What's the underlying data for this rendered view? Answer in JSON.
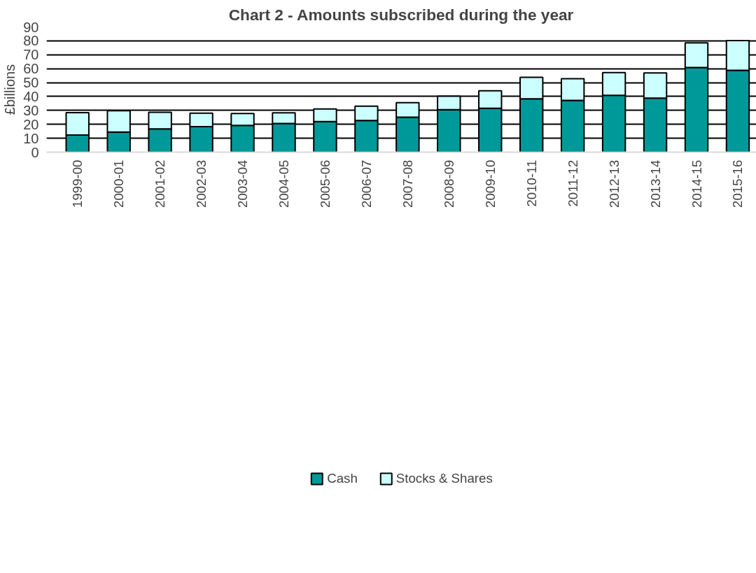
{
  "chart_data": {
    "type": "bar",
    "title": "Chart 2 - Amounts subscribed during the year",
    "ylabel": "£billions",
    "categories": [
      "1999-00",
      "2000-01",
      "2001-02",
      "2002-03",
      "2003-04",
      "2004-05",
      "2005-06",
      "2006-07",
      "2007-08",
      "2008-09",
      "2009-10",
      "2010-11",
      "2011-12",
      "2012-13",
      "2013-14",
      "2014-15",
      "2015-16"
    ],
    "series": [
      {
        "name": "Cash",
        "color": "#009999",
        "values": [
          12.3,
          14.5,
          16.7,
          18.4,
          19.2,
          20.6,
          22.0,
          22.8,
          25.2,
          30.5,
          31.6,
          38.3,
          37.2,
          40.9,
          38.9,
          60.8,
          58.8
        ]
      },
      {
        "name": "Stocks & Shares",
        "color": "#ccffff",
        "values": [
          16.1,
          15.3,
          12.0,
          9.6,
          8.6,
          7.7,
          9.1,
          10.2,
          10.4,
          9.7,
          12.5,
          15.5,
          15.6,
          16.3,
          18.1,
          17.8,
          21.4
        ]
      }
    ],
    "stacked": true,
    "ylim": [
      0,
      90
    ],
    "yticks": [
      0,
      10,
      20,
      30,
      40,
      50,
      60,
      70,
      80,
      90
    ],
    "grid": "y",
    "legend": "bottom"
  }
}
